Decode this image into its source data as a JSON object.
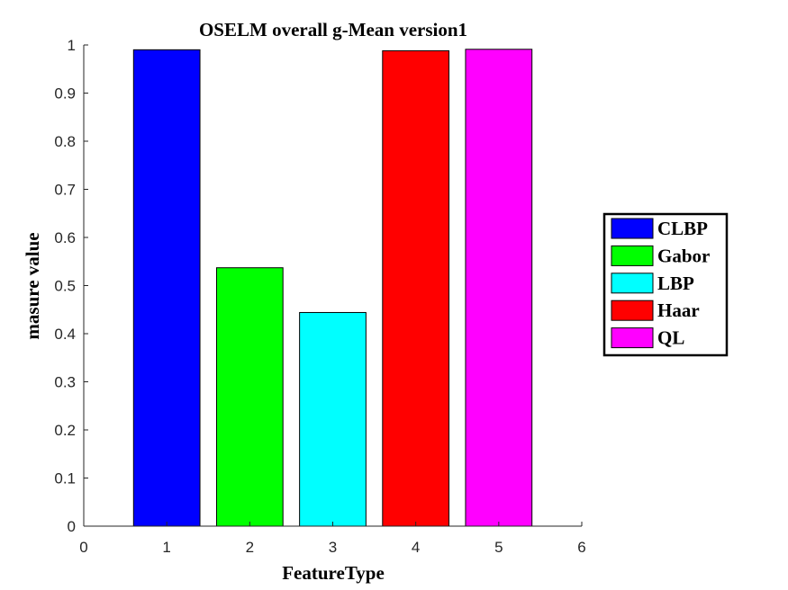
{
  "chart_data": {
    "type": "bar",
    "title": "OSELM overall g-Mean version1",
    "xlabel": "FeatureType",
    "ylabel": "masure value",
    "xlim": [
      0,
      6
    ],
    "ylim": [
      0,
      1
    ],
    "xticks": [
      "0",
      "1",
      "2",
      "3",
      "4",
      "5",
      "6"
    ],
    "yticks": [
      "0",
      "0.1",
      "0.2",
      "0.3",
      "0.4",
      "0.5",
      "0.6",
      "0.7",
      "0.8",
      "0.9",
      "1"
    ],
    "grid": false,
    "legend_position": "outside-right",
    "bars": [
      {
        "name": "CLBP",
        "x": 1,
        "value": 0.99,
        "color": "#0000ff"
      },
      {
        "name": "Gabor",
        "x": 2,
        "value": 0.537,
        "color": "#00ff00"
      },
      {
        "name": "LBP",
        "x": 3,
        "value": 0.444,
        "color": "#00ffff"
      },
      {
        "name": "Haar",
        "x": 4,
        "value": 0.988,
        "color": "#ff0000"
      },
      {
        "name": "QL",
        "x": 5,
        "value": 0.991,
        "color": "#ff00ff"
      }
    ]
  }
}
